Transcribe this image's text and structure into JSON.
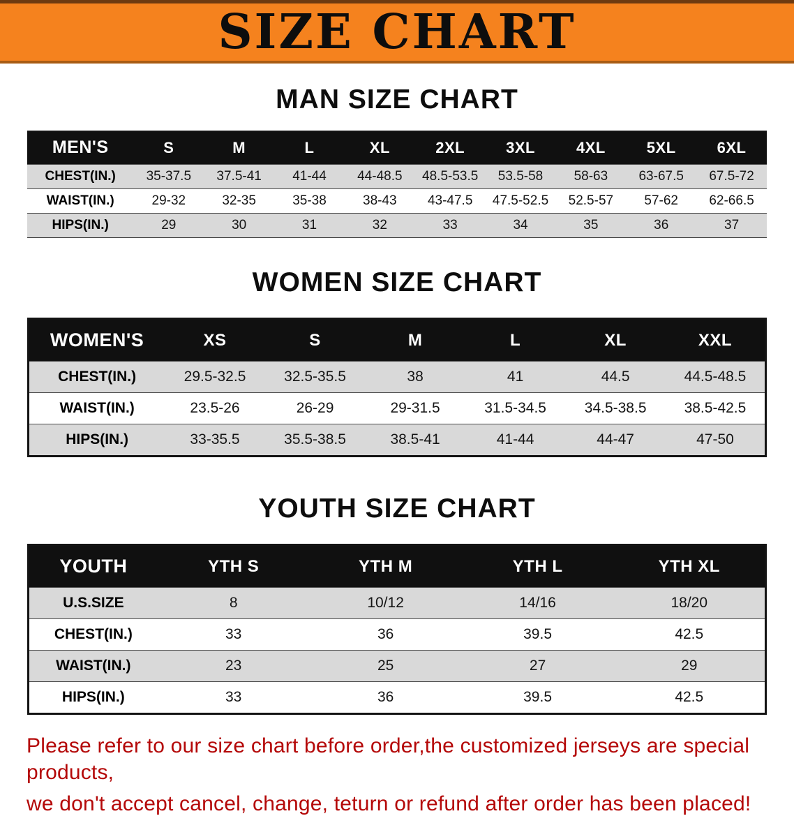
{
  "banner": {
    "title": "SIZE CHART",
    "bg_color": "#F5821E",
    "text_color": "#0D0D0D"
  },
  "colors": {
    "table_header_bg": "#101010",
    "table_header_text": "#FFFFFF",
    "row_shade": "#D9D9D9",
    "disclaimer_text": "#B40808"
  },
  "sections": [
    {
      "heading": "MAN SIZE CHART",
      "table": {
        "header": [
          "MEN'S",
          "S",
          "M",
          "L",
          "XL",
          "2XL",
          "3XL",
          "4XL",
          "5XL",
          "6XL"
        ],
        "rows": [
          {
            "label": "CHEST(IN.)",
            "values": [
              "35-37.5",
              "37.5-41",
              "41-44",
              "44-48.5",
              "48.5-53.5",
              "53.5-58",
              "58-63",
              "63-67.5",
              "67.5-72"
            ]
          },
          {
            "label": "WAIST(IN.)",
            "values": [
              "29-32",
              "32-35",
              "35-38",
              "38-43",
              "43-47.5",
              "47.5-52.5",
              "52.5-57",
              "57-62",
              "62-66.5"
            ]
          },
          {
            "label": "HIPS(IN.)",
            "values": [
              "29",
              "30",
              "31",
              "32",
              "33",
              "34",
              "35",
              "36",
              "37"
            ]
          }
        ]
      }
    },
    {
      "heading": "WOMEN SIZE CHART",
      "table": {
        "header": [
          "WOMEN'S",
          "XS",
          "S",
          "M",
          "L",
          "XL",
          "XXL"
        ],
        "rows": [
          {
            "label": "CHEST(IN.)",
            "values": [
              "29.5-32.5",
              "32.5-35.5",
              "38",
              "41",
              "44.5",
              "44.5-48.5"
            ]
          },
          {
            "label": "WAIST(IN.)",
            "values": [
              "23.5-26",
              "26-29",
              "29-31.5",
              "31.5-34.5",
              "34.5-38.5",
              "38.5-42.5"
            ]
          },
          {
            "label": "HIPS(IN.)",
            "values": [
              "33-35.5",
              "35.5-38.5",
              "38.5-41",
              "41-44",
              "44-47",
              "47-50"
            ]
          }
        ]
      }
    },
    {
      "heading": "YOUTH SIZE CHART",
      "table": {
        "header": [
          "YOUTH",
          "YTH S",
          "YTH M",
          "YTH L",
          "YTH XL"
        ],
        "rows": [
          {
            "label": "U.S.SIZE",
            "values": [
              "8",
              "10/12",
              "14/16",
              "18/20"
            ]
          },
          {
            "label": "CHEST(IN.)",
            "values": [
              "33",
              "36",
              "39.5",
              "42.5"
            ]
          },
          {
            "label": "WAIST(IN.)",
            "values": [
              "23",
              "25",
              "27",
              "29"
            ]
          },
          {
            "label": "HIPS(IN.)",
            "values": [
              "33",
              "36",
              "39.5",
              "42.5"
            ]
          }
        ]
      }
    }
  ],
  "footer": {
    "line1": "Please refer to our size chart before order,the customized jerseys are special products,",
    "line2": "we don't accept cancel, change, teturn or refund after order has been placed!"
  }
}
